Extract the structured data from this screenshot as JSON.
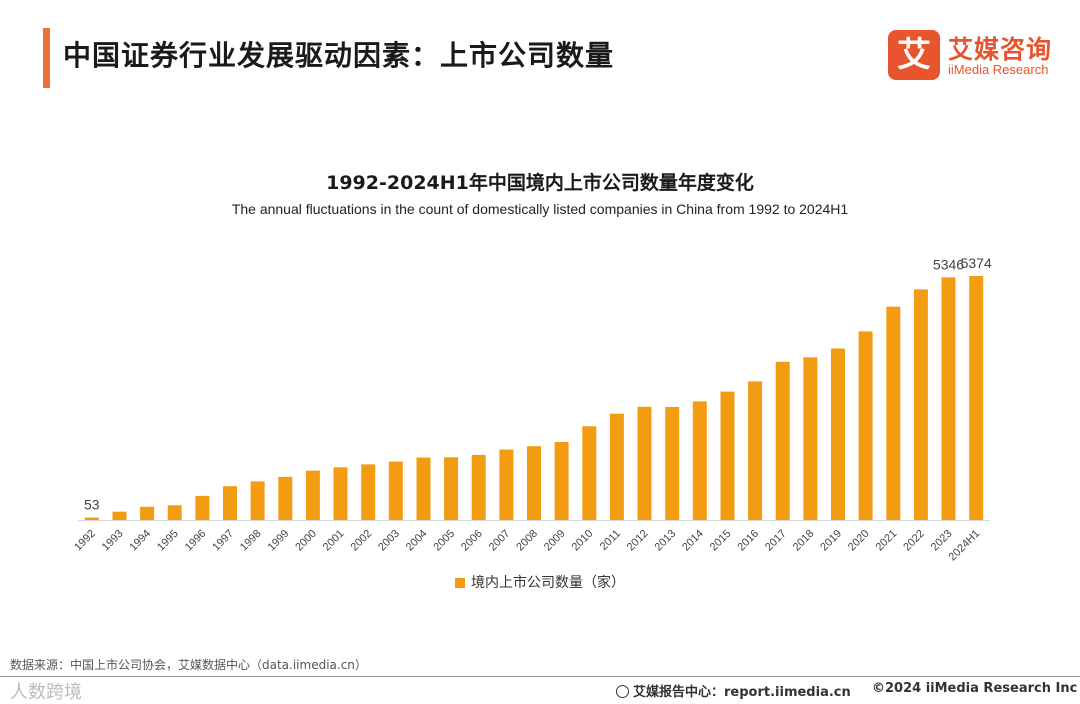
{
  "header": {
    "title": "中国证券行业发展驱动因素：上市公司数量"
  },
  "logo": {
    "mark": "艾",
    "name_cn": "艾媒咨询",
    "name_en": "iiMedia Research"
  },
  "colors": {
    "accent": "#f0703a",
    "bar": "#f39c12",
    "logo": "#e8542d"
  },
  "chart_data": {
    "type": "bar",
    "title": "1992-2024H1年中国境内上市公司数量年度变化",
    "subtitle": "The annual fluctuations in the count of domestically listed companies in China from 1992 to 2024H1",
    "categories": [
      "1992",
      "1993",
      "1994",
      "1995",
      "1996",
      "1997",
      "1998",
      "1999",
      "2000",
      "2001",
      "2002",
      "2003",
      "2004",
      "2005",
      "2006",
      "2007",
      "2008",
      "2009",
      "2010",
      "2011",
      "2012",
      "2013",
      "2014",
      "2015",
      "2016",
      "2017",
      "2018",
      "2019",
      "2020",
      "2021",
      "2022",
      "2023",
      "2024H1"
    ],
    "series": [
      {
        "name": "境内上市公司数量（家）",
        "values": [
          53,
          183,
          291,
          323,
          530,
          745,
          851,
          949,
          1088,
          1160,
          1224,
          1287,
          1377,
          1381,
          1434,
          1550,
          1625,
          1718,
          2063,
          2342,
          2494,
          2489,
          2613,
          2827,
          3052,
          3485,
          3584,
          3777,
          4154,
          4697,
          5079,
          5346,
          5374
        ]
      }
    ],
    "data_labels": {
      "0": "53",
      "31": "5346",
      "32": "5374"
    },
    "ylim": [
      0,
      5600
    ],
    "grid": false,
    "legend": "bottom-center"
  },
  "source": "数据来源：中国上市公司协会，艾媒数据中心（data.iimedia.cn）",
  "footer": {
    "watermark": "人数跨境",
    "report": "艾媒报告中心：report.iimedia.cn",
    "copyright": "©2024  iiMedia Research Inc"
  }
}
